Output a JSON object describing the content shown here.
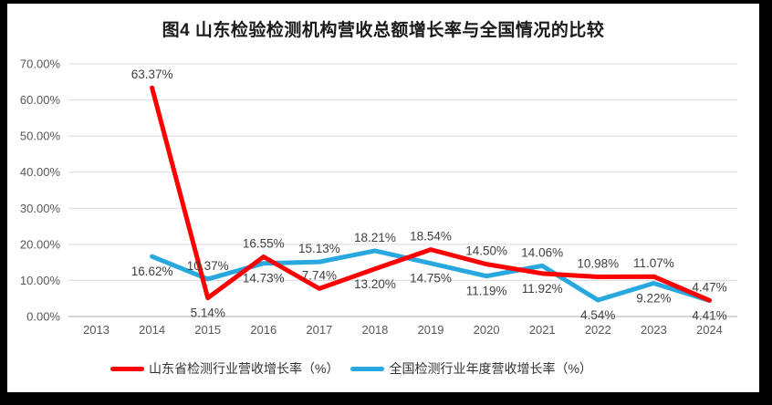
{
  "chart": {
    "title": "图4  山东检验检测机构营收总额增长率与全国情况的比较"
  },
  "chart_data": {
    "type": "line",
    "title": "图4  山东检验检测机构营收总额增长率与全国情况的比较",
    "categories": [
      "2013",
      "2014",
      "2015",
      "2016",
      "2017",
      "2018",
      "2019",
      "2020",
      "2021",
      "2022",
      "2023",
      "2024"
    ],
    "series": [
      {
        "id": "shandong",
        "name": "山东省检测行业营收增长率（%）",
        "color": "#FE0000",
        "values": [
          null,
          63.37,
          5.14,
          16.55,
          7.74,
          13.2,
          18.54,
          14.5,
          11.92,
          10.98,
          11.07,
          4.47
        ],
        "label_positions": [
          null,
          "above",
          "below",
          "above",
          "above",
          "below",
          "above",
          "above",
          "below",
          "above",
          "above",
          "above"
        ]
      },
      {
        "id": "national",
        "name": "全国检测行业年度营收增长率（%）",
        "color": "#29A8E0",
        "values": [
          null,
          16.62,
          10.37,
          14.73,
          15.13,
          18.21,
          14.75,
          11.19,
          14.06,
          4.54,
          9.22,
          4.41
        ],
        "label_positions": [
          null,
          "below",
          "above",
          "below",
          "above",
          "above",
          "below",
          "below",
          "above",
          "below",
          "below",
          "below"
        ]
      }
    ],
    "y_ticks": [
      "0.00%",
      "10.00%",
      "20.00%",
      "30.00%",
      "40.00%",
      "50.00%",
      "60.00%",
      "70.00%"
    ],
    "ylim": [
      0,
      70
    ],
    "xlabel": "",
    "ylabel": "",
    "grid": true,
    "legend_position": "bottom",
    "colors": {
      "grid": "#D9D9D9",
      "axis": "#BFBFBF",
      "tick_text": "#595959",
      "label_text": "#404040",
      "background": "#FFFFFF",
      "frame": "#000000"
    }
  }
}
